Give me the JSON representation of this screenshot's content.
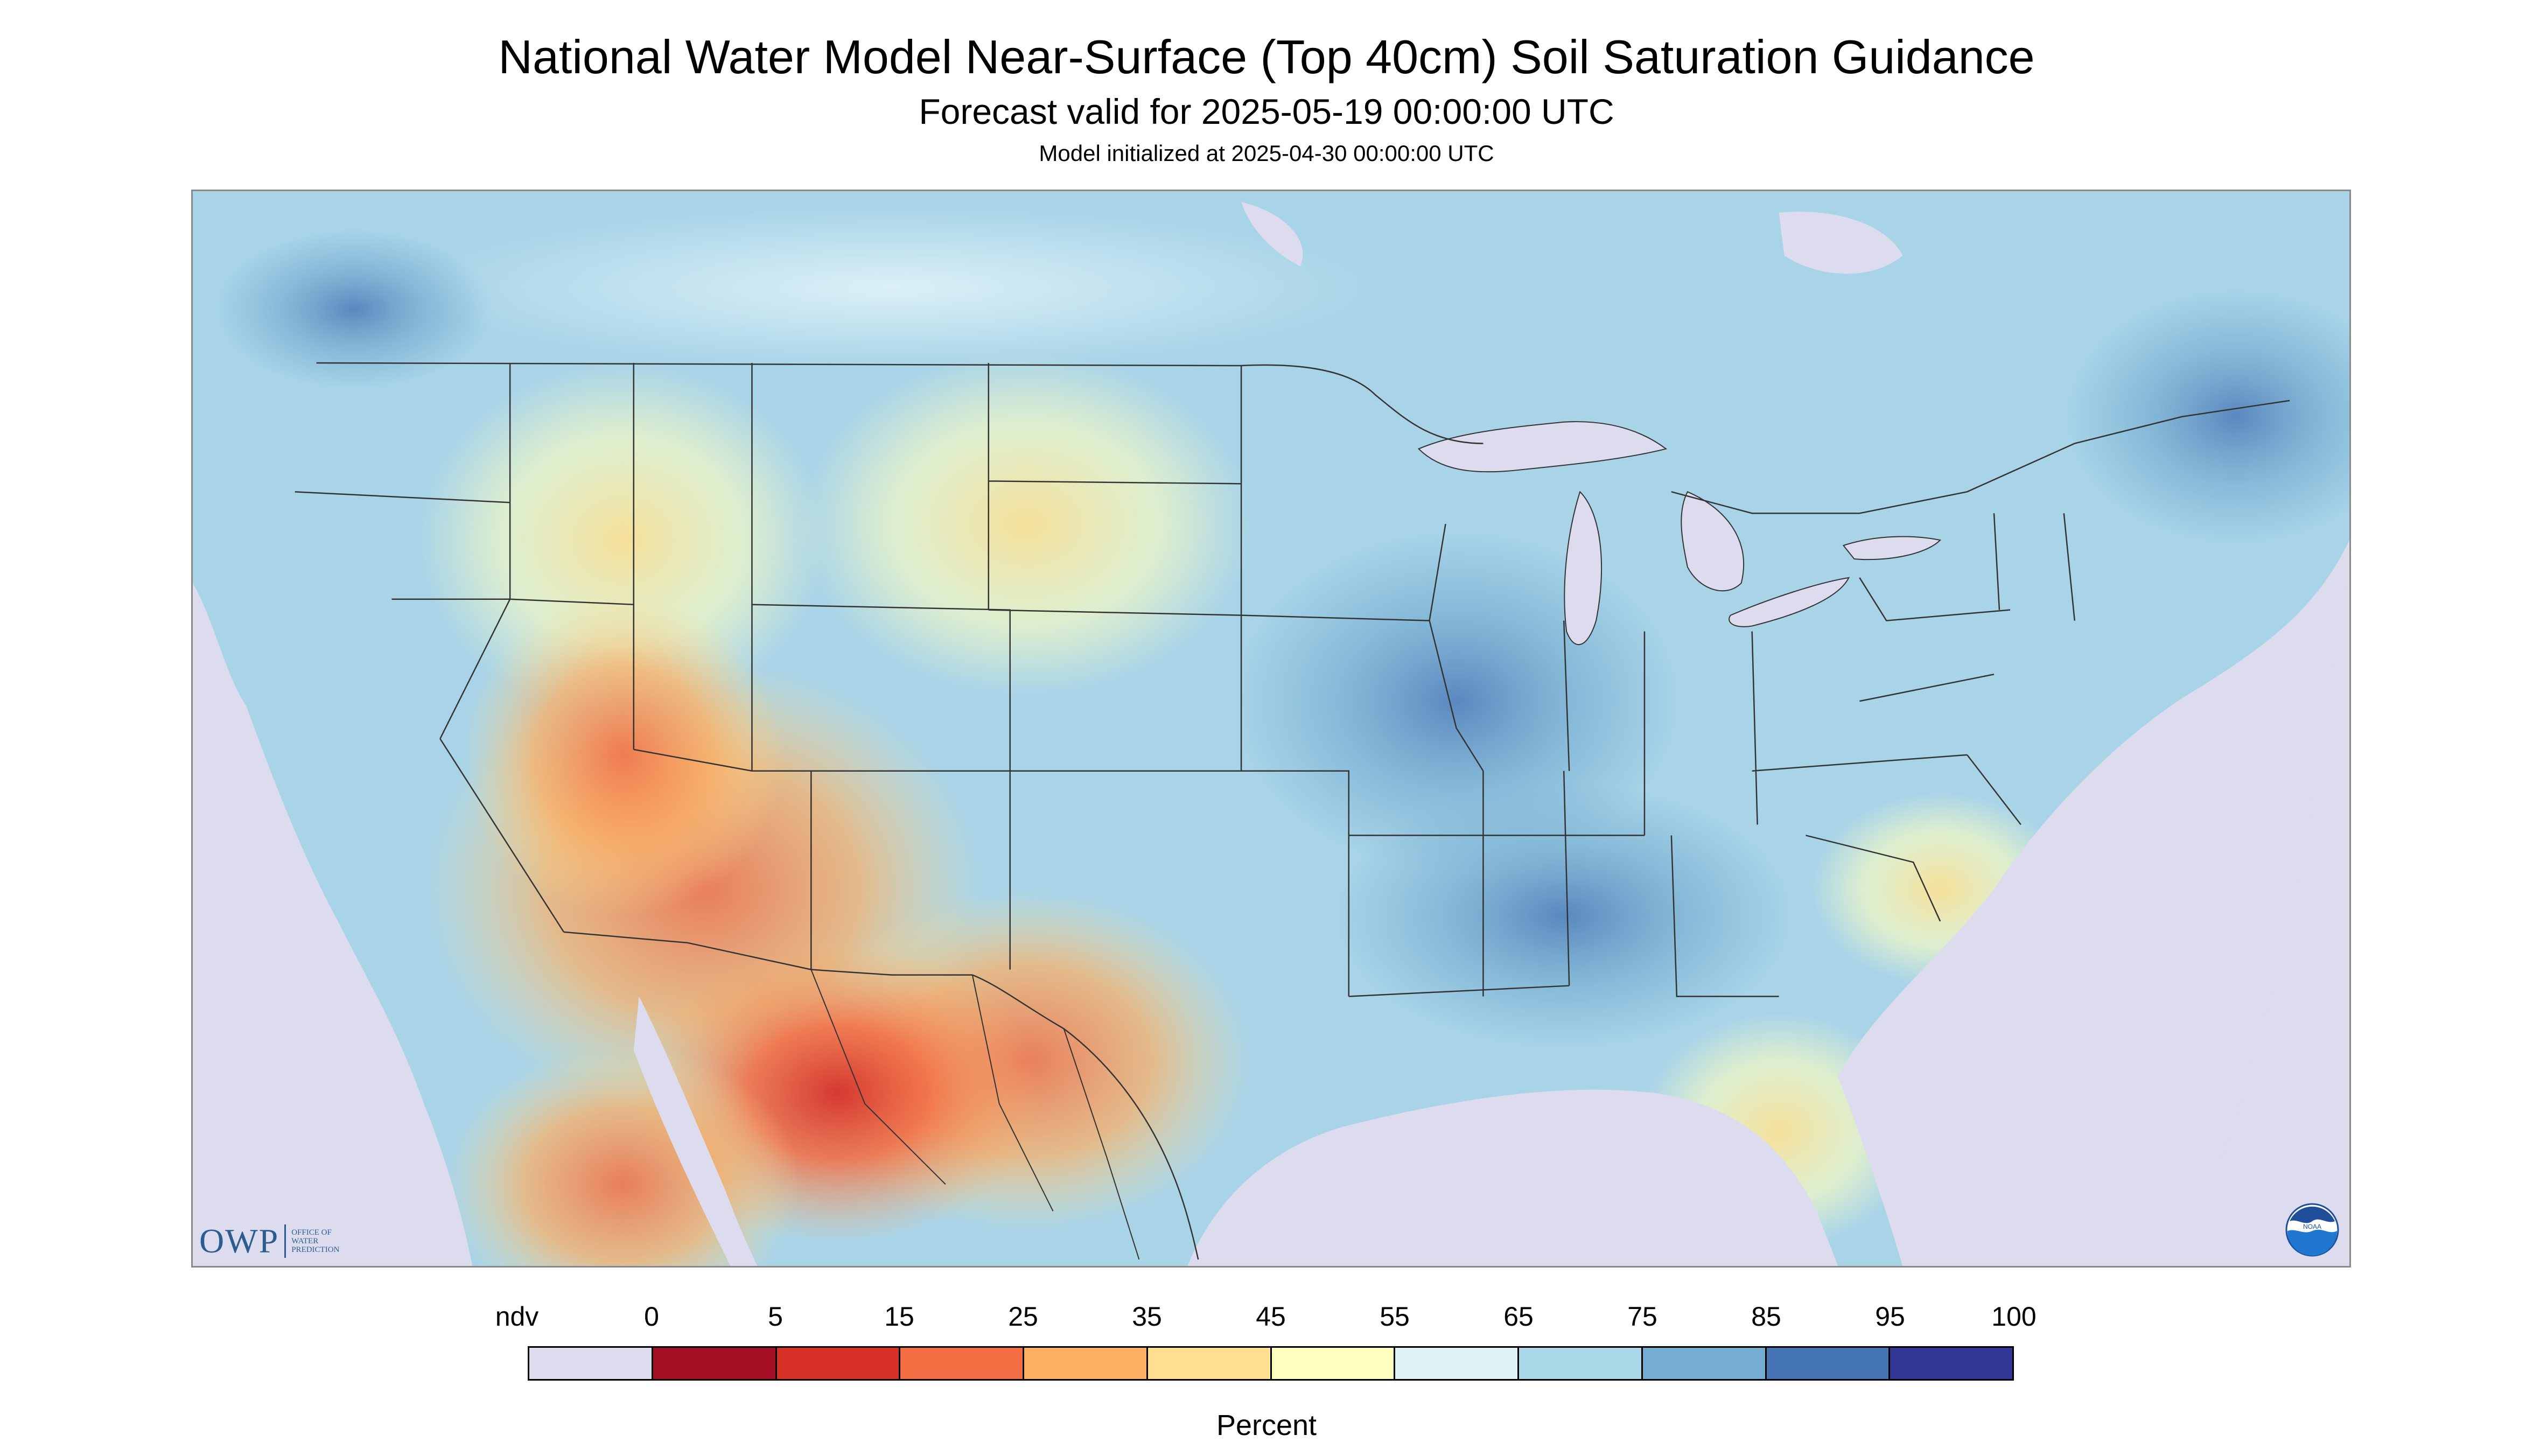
{
  "title": "National Water Model Near-Surface (Top 40cm) Soil Saturation Guidance",
  "subtitle": "Forecast valid for 2025-05-19 00:00:00 UTC",
  "init_line": "Model initialized at 2025-04-30 00:00:00 UTC",
  "map": {
    "projection": "Lambert Conformal Conic (CONUS)",
    "background_color": "#dcdcee",
    "base_color": "#a9d4e8",
    "boundary_color": "#333333"
  },
  "logos": {
    "owp": {
      "letters": "OWP",
      "subtext": [
        "Office of",
        "Water",
        "Prediction"
      ]
    },
    "noaa": {
      "text": "NOAA"
    }
  },
  "legend": {
    "unit": "Percent",
    "tick_labels": [
      "ndv",
      "0",
      "5",
      "15",
      "25",
      "35",
      "45",
      "55",
      "65",
      "75",
      "85",
      "95",
      "100"
    ],
    "colors": [
      "#dcdcee",
      "#a50f26",
      "#d73027",
      "#f46d43",
      "#fdae61",
      "#fee090",
      "#ffffbf",
      "#e0f3f8",
      "#abd9e9",
      "#74add1",
      "#4575b4",
      "#313695"
    ]
  }
}
